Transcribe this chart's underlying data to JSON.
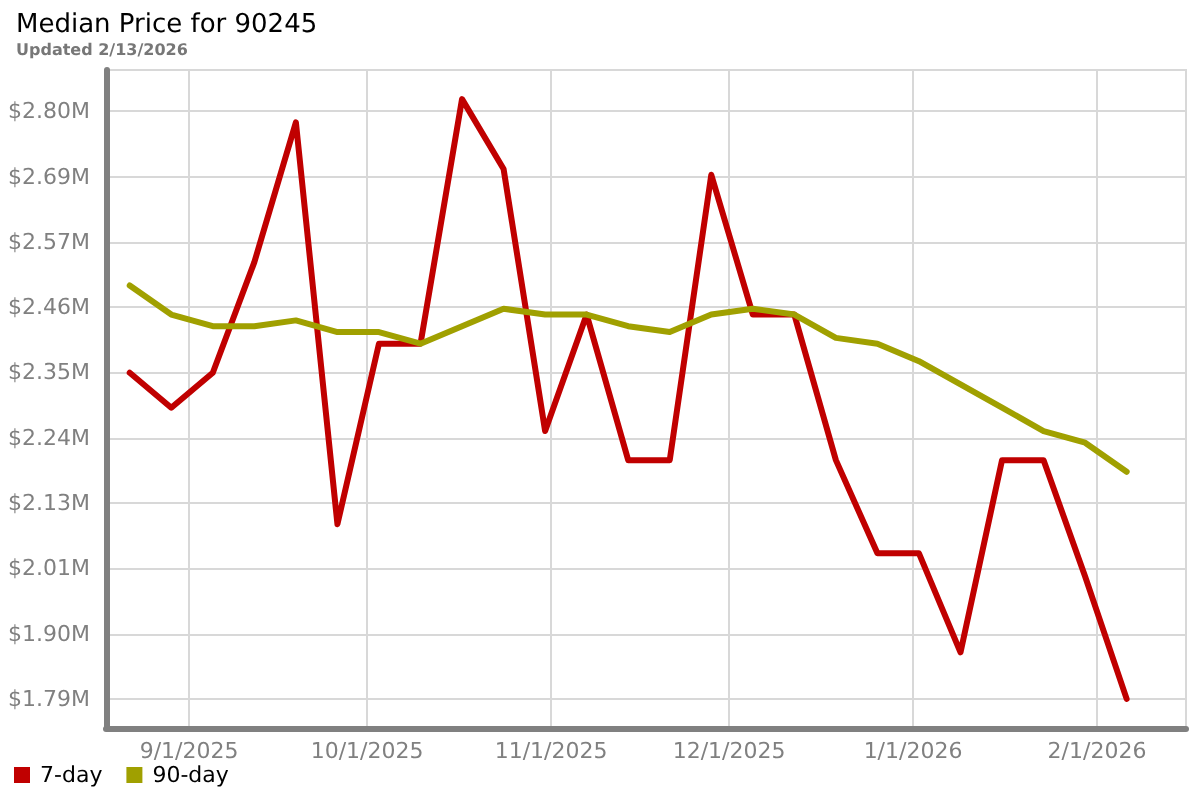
{
  "chart_data": {
    "type": "line",
    "title": "Median Price for 90245",
    "subtitle": "Updated 2/13/2026",
    "x": [
      "2025-08-22",
      "2025-08-29",
      "2025-09-05",
      "2025-09-12",
      "2025-09-19",
      "2025-09-26",
      "2025-10-03",
      "2025-10-10",
      "2025-10-17",
      "2025-10-24",
      "2025-10-31",
      "2025-11-07",
      "2025-11-14",
      "2025-11-21",
      "2025-11-28",
      "2025-12-05",
      "2025-12-12",
      "2025-12-19",
      "2025-12-26",
      "2026-01-02",
      "2026-01-09",
      "2026-01-16",
      "2026-01-23",
      "2026-01-30",
      "2026-02-06"
    ],
    "series": [
      {
        "name": "7-day",
        "color": "#c00000",
        "values": [
          2.35,
          2.29,
          2.35,
          2.54,
          2.78,
          2.09,
          2.4,
          2.4,
          2.82,
          2.7,
          2.25,
          2.45,
          2.2,
          2.2,
          2.69,
          2.45,
          2.45,
          2.2,
          2.04,
          2.04,
          1.87,
          2.2,
          2.2,
          2.0,
          1.79
        ]
      },
      {
        "name": "90-day",
        "color": "#a0a000",
        "values": [
          2.5,
          2.45,
          2.43,
          2.43,
          2.44,
          2.42,
          2.42,
          2.4,
          2.43,
          2.46,
          2.45,
          2.45,
          2.43,
          2.42,
          2.45,
          2.46,
          2.45,
          2.41,
          2.4,
          2.37,
          2.33,
          2.29,
          2.25,
          2.23,
          2.18
        ]
      }
    ],
    "xlim": [
      "2025-08-18",
      "2026-02-16"
    ],
    "xticks": [
      {
        "value": "2025-09-01",
        "label": "9/1/2025"
      },
      {
        "value": "2025-10-01",
        "label": "10/1/2025"
      },
      {
        "value": "2025-11-01",
        "label": "11/1/2025"
      },
      {
        "value": "2025-12-01",
        "label": "12/1/2025"
      },
      {
        "value": "2026-01-01",
        "label": "1/1/2026"
      },
      {
        "value": "2026-02-01",
        "label": "2/1/2026"
      }
    ],
    "ylim": [
      1.74,
      2.87
    ],
    "yticks": [
      {
        "value": 1.79,
        "label": "$1.79M"
      },
      {
        "value": 1.902,
        "label": "$1.90M"
      },
      {
        "value": 2.014,
        "label": "$2.01M"
      },
      {
        "value": 2.126,
        "label": "$2.13M"
      },
      {
        "value": 2.238,
        "label": "$2.24M"
      },
      {
        "value": 2.351,
        "label": "$2.35M"
      },
      {
        "value": 2.463,
        "label": "$2.46M"
      },
      {
        "value": 2.574,
        "label": "$2.57M"
      },
      {
        "value": 2.687,
        "label": "$2.69M"
      },
      {
        "value": 2.799,
        "label": "$2.80M"
      }
    ],
    "grid": true,
    "legend": "bottom left",
    "marker": "none",
    "line_style": "solid"
  }
}
